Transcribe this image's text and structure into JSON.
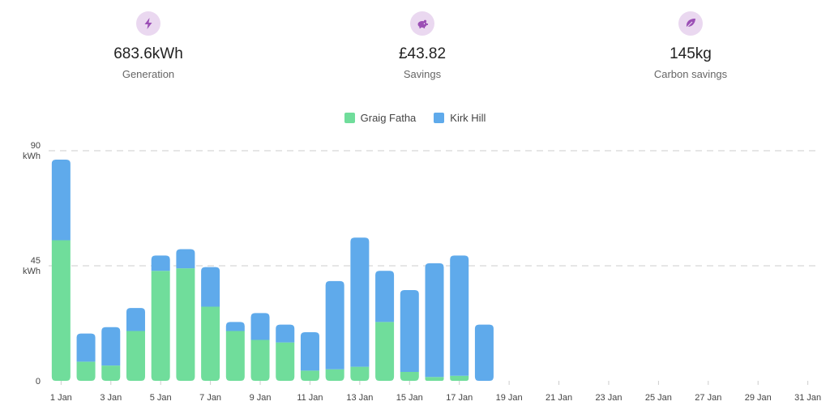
{
  "stats": [
    {
      "icon": "lightning-bolt-icon",
      "value": "683.6kWh",
      "label": "Generation"
    },
    {
      "icon": "piggy-bank-icon",
      "value": "£43.82",
      "label": "Savings"
    },
    {
      "icon": "leaf-icon",
      "value": "145kg",
      "label": "Carbon savings"
    }
  ],
  "colors": {
    "accent_bg": "#ead8f0",
    "accent_icon": "#9b4fb5",
    "series_green": "#70dd9b",
    "series_blue": "#5faaeb",
    "grid": "#dddddd"
  },
  "chart_data": {
    "type": "bar",
    "stacked": true,
    "title": "",
    "xlabel": "",
    "ylabel": "",
    "ylim": [
      0,
      90
    ],
    "y_ticks": [
      {
        "value": 0,
        "label": "0",
        "unit": ""
      },
      {
        "value": 45,
        "label": "45",
        "unit": "kWh"
      },
      {
        "value": 90,
        "label": "90",
        "unit": "kWh"
      }
    ],
    "legend_position": "top-center",
    "categories": [
      "1 Jan",
      "2 Jan",
      "3 Jan",
      "4 Jan",
      "5 Jan",
      "6 Jan",
      "7 Jan",
      "8 Jan",
      "9 Jan",
      "10 Jan",
      "11 Jan",
      "12 Jan",
      "13 Jan",
      "14 Jan",
      "15 Jan",
      "16 Jan",
      "17 Jan",
      "18 Jan",
      "19 Jan",
      "20 Jan",
      "21 Jan",
      "22 Jan",
      "23 Jan",
      "24 Jan",
      "25 Jan",
      "26 Jan",
      "27 Jan",
      "28 Jan",
      "29 Jan",
      "30 Jan",
      "31 Jan"
    ],
    "x_tick_labels": [
      "1 Jan",
      "3 Jan",
      "5 Jan",
      "7 Jan",
      "9 Jan",
      "11 Jan",
      "13 Jan",
      "15 Jan",
      "17 Jan",
      "19 Jan",
      "21 Jan",
      "23 Jan",
      "25 Jan",
      "27 Jan",
      "29 Jan",
      "31 Jan"
    ],
    "series": [
      {
        "name": "Graig Fatha",
        "color": "#70dd9b",
        "values": [
          55,
          7.5,
          6,
          19.5,
          43,
          44,
          29,
          19.5,
          16,
          15,
          4,
          4.5,
          5.5,
          23,
          3.5,
          1.5,
          2,
          0,
          0,
          0,
          0,
          0,
          0,
          0,
          0,
          0,
          0,
          0,
          0,
          0,
          0
        ]
      },
      {
        "name": "Kirk Hill",
        "color": "#5faaeb",
        "values": [
          31.5,
          11,
          15,
          9,
          6,
          7.5,
          15.5,
          3.5,
          10.5,
          7,
          15,
          34.5,
          50.5,
          20,
          32,
          44.5,
          47,
          22,
          0,
          0,
          0,
          0,
          0,
          0,
          0,
          0,
          0,
          0,
          0,
          0,
          0
        ]
      }
    ]
  }
}
